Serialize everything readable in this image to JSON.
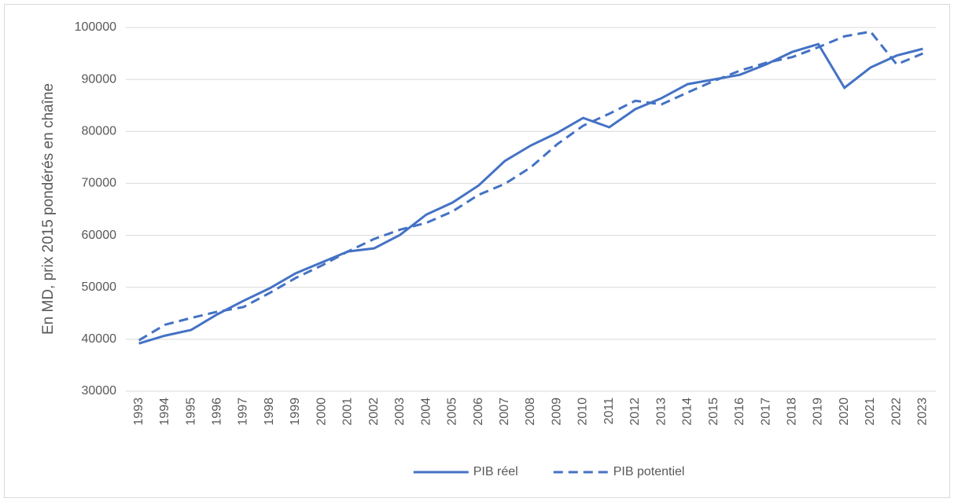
{
  "chart_data": {
    "type": "line",
    "y_label": "En MD, prix 2015 pondérés en chaîne",
    "categories": [
      "1993",
      "1994",
      "1995",
      "1996",
      "1997",
      "1998",
      "1999",
      "2000",
      "2001",
      "2002",
      "2003",
      "2004",
      "2005",
      "2006",
      "2007",
      "2008",
      "2009",
      "2010",
      "2011",
      "2012",
      "2013",
      "2014",
      "2015",
      "2016",
      "2017",
      "2018",
      "2019",
      "2020",
      "2021",
      "2022",
      "2023"
    ],
    "series": [
      {
        "name": "PIB réel",
        "color": "#4472c4",
        "dashed": false,
        "values": [
          39200,
          40700,
          41800,
          44800,
          47400,
          49800,
          52700,
          54800,
          56900,
          57500,
          60100,
          64000,
          66300,
          69600,
          74300,
          77300,
          79700,
          82600,
          80800,
          84300,
          86400,
          89100,
          90000,
          90900,
          92900,
          95300,
          96800,
          88400,
          92300,
          94600,
          95900
        ]
      },
      {
        "name": "PIB potentiel",
        "color": "#4472c4",
        "dashed": true,
        "values": [
          39800,
          42800,
          44100,
          45300,
          46200,
          48900,
          51800,
          54200,
          56900,
          59300,
          61100,
          62400,
          64600,
          67800,
          69900,
          73100,
          77500,
          81100,
          83400,
          85900,
          85200,
          87500,
          89700,
          91700,
          93200,
          94300,
          96200,
          98300,
          99200,
          92900,
          95000
        ]
      }
    ],
    "ylim": [
      30000,
      100000
    ],
    "yticks": [
      30000,
      40000,
      50000,
      60000,
      70000,
      80000,
      90000,
      100000
    ],
    "grid": true,
    "legend": "bottom"
  }
}
